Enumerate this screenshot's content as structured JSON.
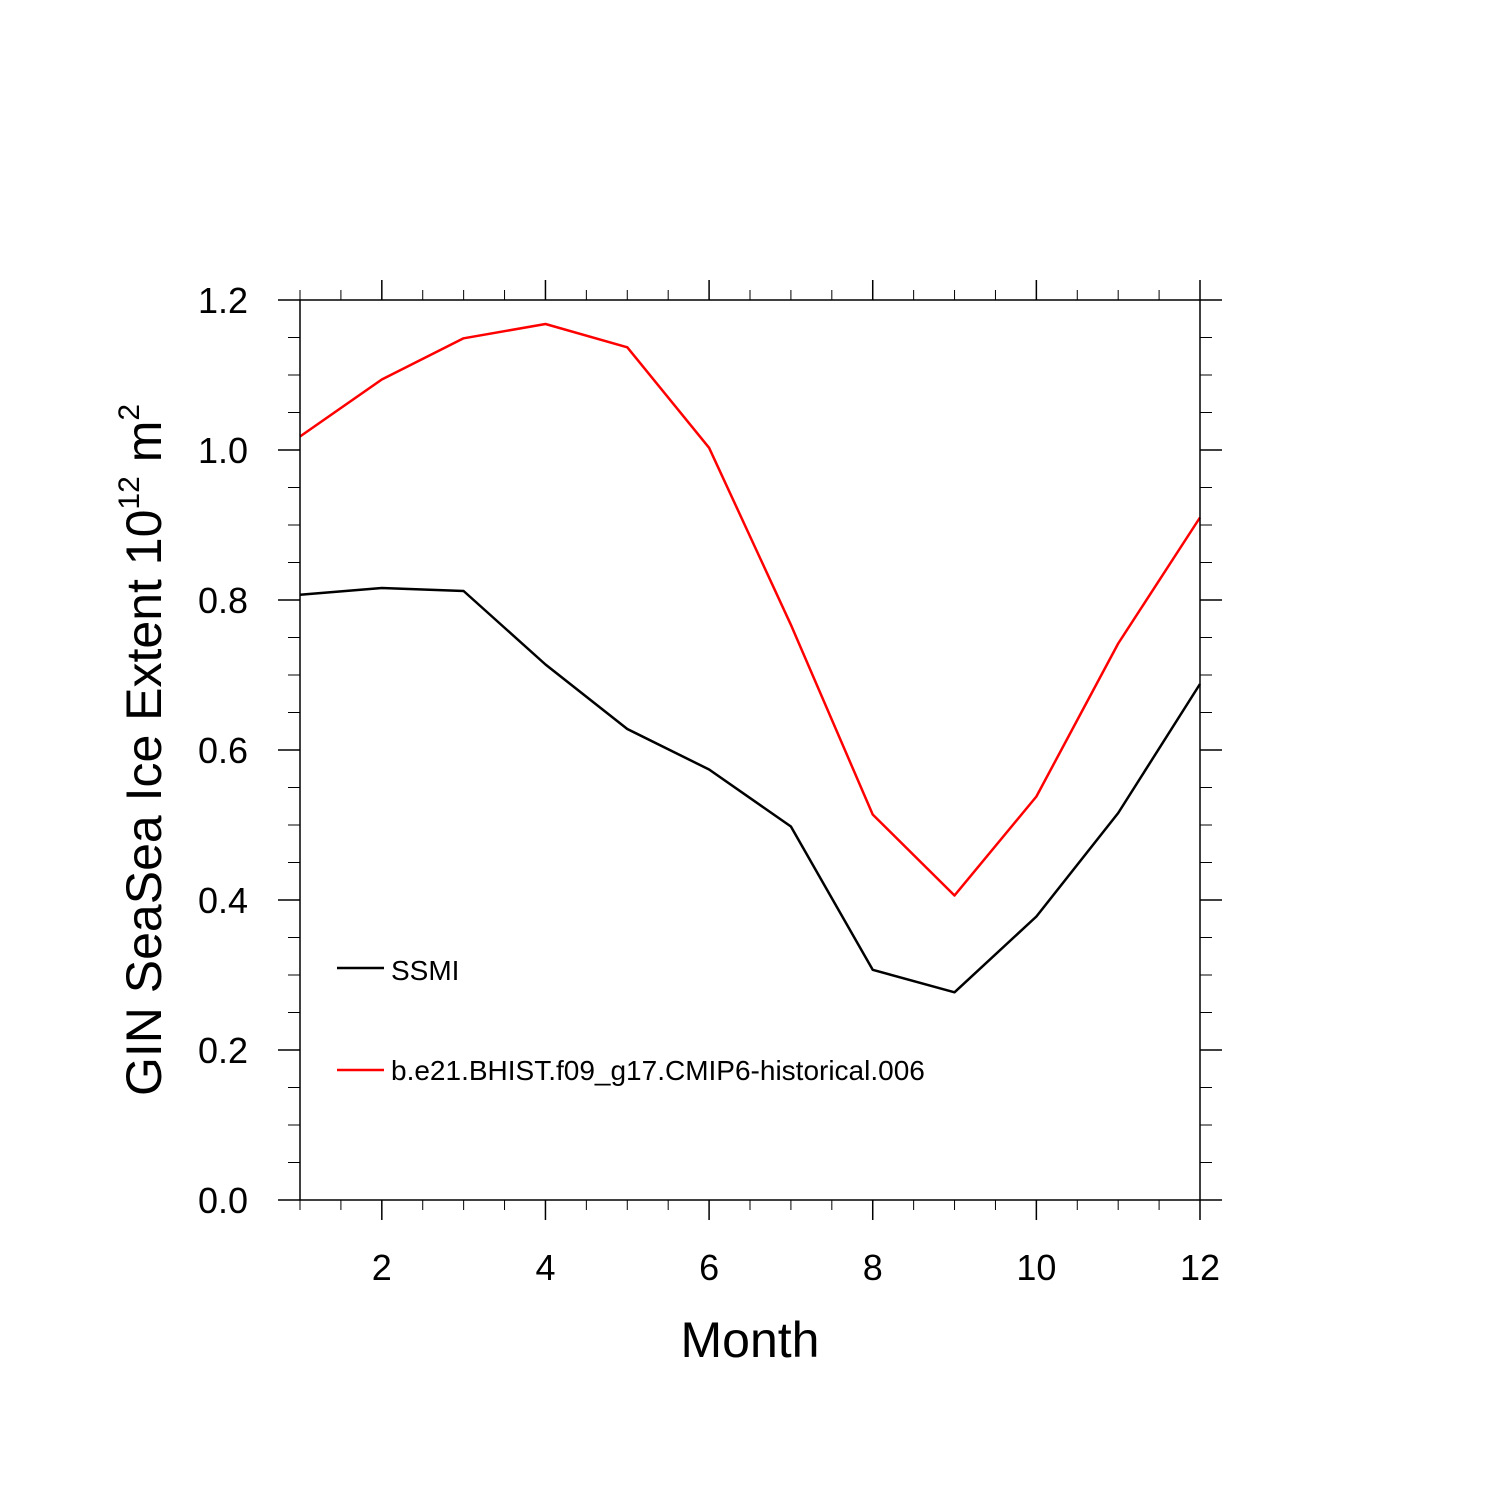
{
  "chart_data": {
    "type": "line",
    "title": "",
    "xlabel": "Month",
    "ylabel_text": "GIN SeaSea Ice Extent 10",
    "ylabel_exp": "12",
    "ylabel_unit": " m",
    "ylabel_unit_exp": "2",
    "xlim": [
      1,
      12
    ],
    "ylim": [
      0,
      1.2
    ],
    "x_ticks": [
      2,
      4,
      6,
      8,
      10,
      12
    ],
    "x_tick_labels": [
      "2",
      "4",
      "6",
      "8",
      "10",
      "12"
    ],
    "y_ticks": [
      0.0,
      0.2,
      0.4,
      0.6,
      0.8,
      1.0,
      1.2
    ],
    "y_tick_labels": [
      "0.0",
      "0.2",
      "0.4",
      "0.6",
      "0.8",
      "1.0",
      "1.2"
    ],
    "x": [
      1,
      2,
      3,
      4,
      5,
      6,
      7,
      8,
      9,
      10,
      11,
      12
    ],
    "series": [
      {
        "name": "SSMI",
        "color": "#000000",
        "values": [
          0.807,
          0.816,
          0.812,
          0.714,
          0.628,
          0.574,
          0.498,
          0.307,
          0.277,
          0.378,
          0.516,
          0.688
        ]
      },
      {
        "name": "b.e21.BHIST.f09_g17.CMIP6-historical.006",
        "color": "#ff0000",
        "values": [
          1.018,
          1.094,
          1.149,
          1.168,
          1.137,
          1.003,
          0.767,
          0.514,
          0.406,
          0.538,
          0.742,
          0.91
        ]
      }
    ],
    "legend_position": "lower-left",
    "grid": false
  }
}
